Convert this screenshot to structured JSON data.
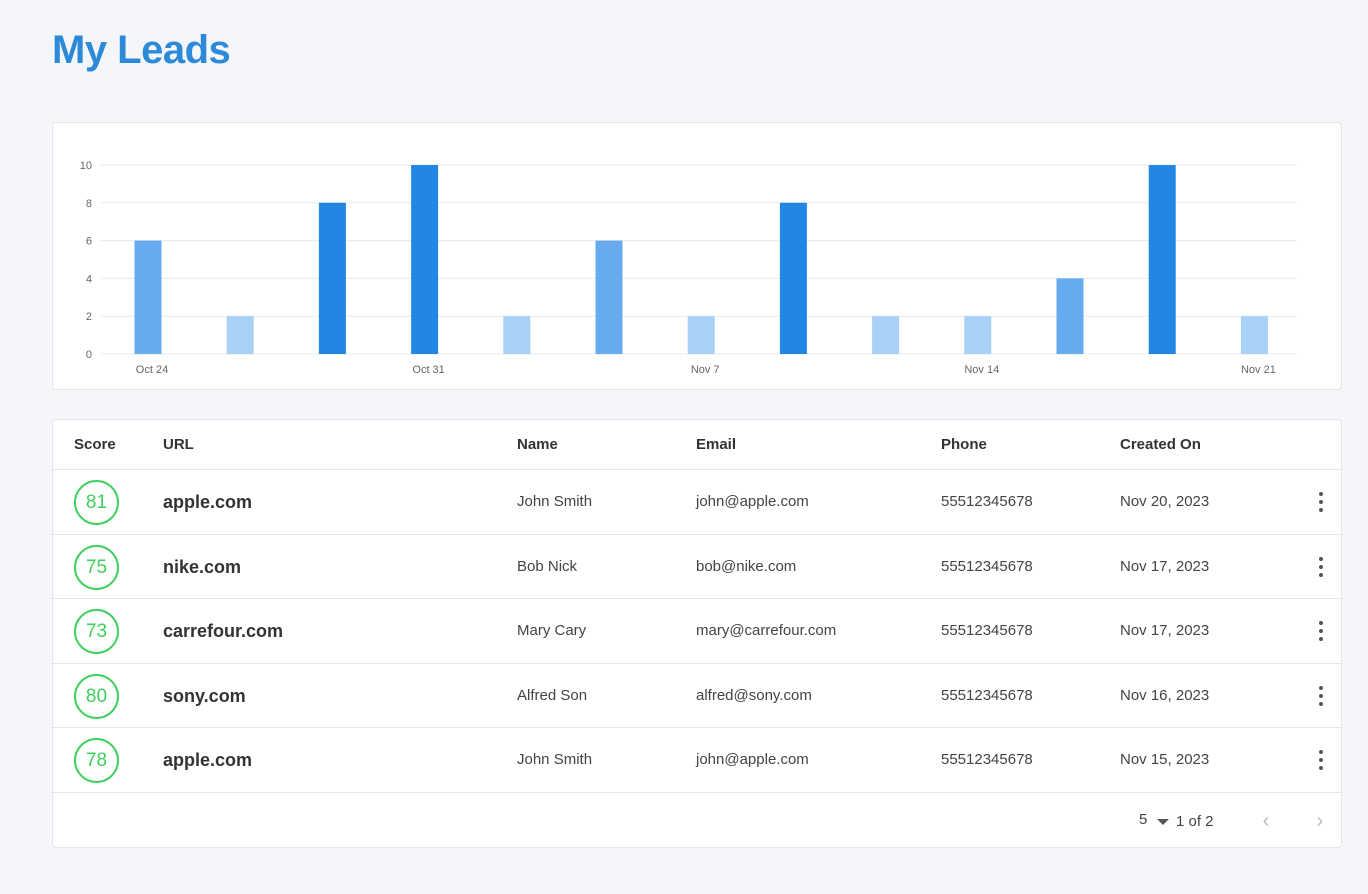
{
  "page": {
    "title": "My Leads"
  },
  "colors": {
    "accent": "#2d8ad9",
    "score": "#3ecf5c",
    "bar_dark": "#2287e3",
    "bar_mid": "#66abed",
    "bar_light": "#a9d0f5"
  },
  "chart_data": {
    "type": "bar",
    "y_ticks": [
      0,
      2,
      4,
      6,
      8,
      10
    ],
    "ylim": [
      0,
      10
    ],
    "x_tick_labels": [
      "Oct 24",
      "Oct 31",
      "Nov 7",
      "Nov 14",
      "Nov 21"
    ],
    "grid": true,
    "values": [
      6,
      2,
      8,
      10,
      2,
      6,
      2,
      8,
      2,
      2,
      4,
      10,
      2
    ],
    "color_levels": [
      "mid",
      "light",
      "dark",
      "dark",
      "light",
      "mid",
      "light",
      "dark",
      "light",
      "light",
      "mid",
      "dark",
      "light"
    ]
  },
  "table": {
    "headers": {
      "score": "Score",
      "url": "URL",
      "name": "Name",
      "email": "Email",
      "phone": "Phone",
      "created": "Created On"
    },
    "rows": [
      {
        "score": "81",
        "url": "apple.com",
        "name": "John Smith",
        "email": "john@apple.com",
        "phone": "55512345678",
        "created": "Nov 20, 2023"
      },
      {
        "score": "75",
        "url": "nike.com",
        "name": "Bob Nick",
        "email": "bob@nike.com",
        "phone": "55512345678",
        "created": "Nov 17, 2023"
      },
      {
        "score": "73",
        "url": "carrefour.com",
        "name": "Mary Cary",
        "email": "mary@carrefour.com",
        "phone": "55512345678",
        "created": "Nov 17, 2023"
      },
      {
        "score": "80",
        "url": "sony.com",
        "name": "Alfred Son",
        "email": "alfred@sony.com",
        "phone": "55512345678",
        "created": "Nov 16, 2023"
      },
      {
        "score": "78",
        "url": "apple.com",
        "name": "John Smith",
        "email": "john@apple.com",
        "phone": "55512345678",
        "created": "Nov 15, 2023"
      }
    ]
  },
  "pagination": {
    "page_size": "5",
    "info": "1 of 2",
    "prev_icon": "chevron-left-icon",
    "next_icon": "chevron-right-icon"
  }
}
